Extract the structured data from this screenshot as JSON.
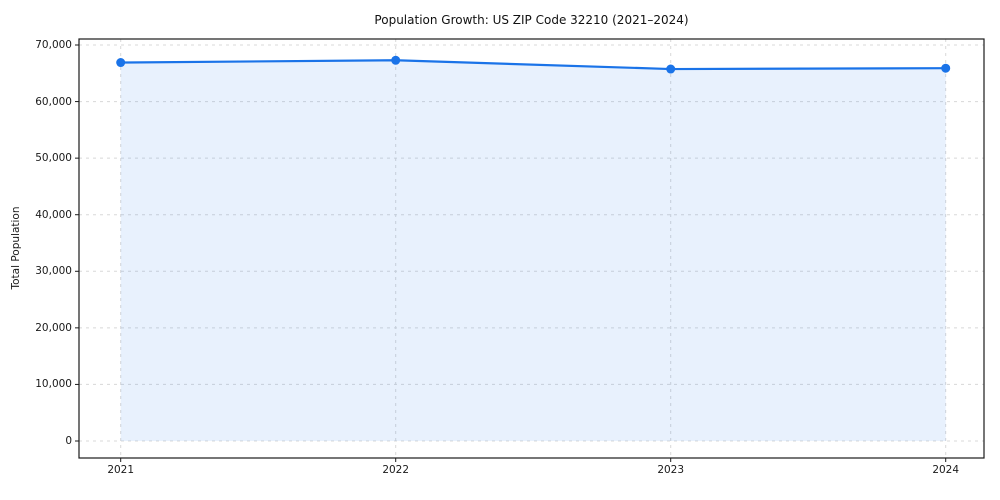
{
  "chart_data": {
    "type": "area",
    "title": "Population Growth: US ZIP Code 32210 (2021–2024)",
    "xlabel": "",
    "ylabel": "Total Population",
    "categories": [
      "2021",
      "2022",
      "2023",
      "2024"
    ],
    "series": [
      {
        "name": "Total Population",
        "values": [
          66900,
          67300,
          65750,
          65900
        ]
      }
    ],
    "ylim": [
      0,
      70000
    ],
    "ytick_step": 10000,
    "ytick_labels": [
      "0",
      "10,000",
      "20,000",
      "30,000",
      "40,000",
      "50,000",
      "60,000",
      "70,000"
    ],
    "grid": true,
    "grid_style": "dashed",
    "legend_position": "none",
    "line_color": "#1a73e8",
    "marker_color": "#1a73e8",
    "fill_color": "rgba(26, 115, 232, 0.10)",
    "grid_color": "#d8d8d8",
    "spine_color": "#1a1a1a",
    "background": "#ffffff"
  }
}
